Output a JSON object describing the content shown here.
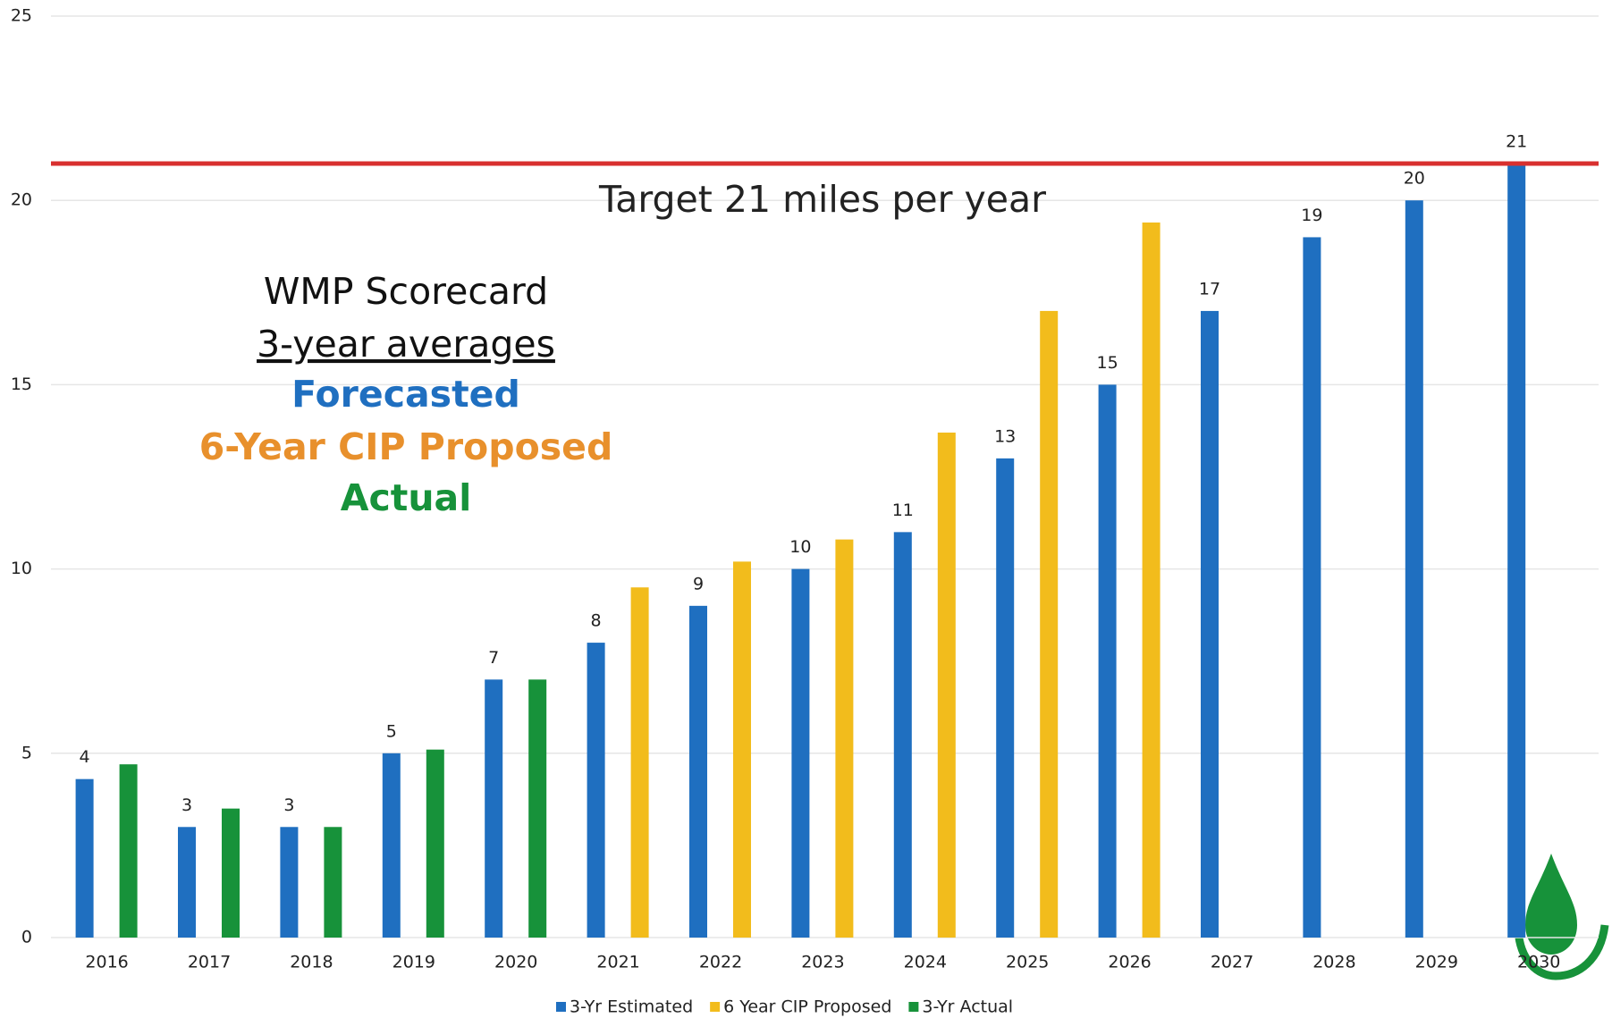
{
  "chart_data": {
    "type": "bar",
    "categories": [
      "2016",
      "2017",
      "2018",
      "2019",
      "2020",
      "2021",
      "2022",
      "2023",
      "2024",
      "2025",
      "2026",
      "2027",
      "2028",
      "2029",
      "2030"
    ],
    "series": [
      {
        "name": "3-Yr Estimated",
        "color": "#1f6fc0",
        "values": [
          4.3,
          3,
          3,
          5,
          7,
          8,
          9,
          10,
          11,
          13,
          15,
          17,
          19,
          20,
          21
        ],
        "value_labels": [
          "4",
          "3",
          "3",
          "5",
          "7",
          "8",
          "9",
          "10",
          "11",
          "13",
          "15",
          "17",
          "19",
          "20",
          "21"
        ]
      },
      {
        "name": "6 Year CIP Proposed",
        "color": "#f2bc1c",
        "values": [
          null,
          null,
          null,
          null,
          null,
          9.5,
          10.2,
          10.8,
          13.7,
          17.0,
          19.4,
          null,
          null,
          null,
          null
        ]
      },
      {
        "name": "3-Yr Actual",
        "color": "#17923a",
        "values": [
          4.7,
          3.5,
          3.0,
          5.1,
          7.0,
          null,
          null,
          null,
          null,
          null,
          null,
          null,
          null,
          null,
          null
        ]
      }
    ],
    "ylim": [
      0,
      25
    ],
    "yticks": [
      0,
      5,
      10,
      15,
      20,
      25
    ],
    "grid": true,
    "target_line": {
      "value": 21,
      "color": "#d8302f",
      "label": "Target 21 miles per year"
    },
    "annotations": [
      {
        "text": "WMP Scorecard",
        "color": "#111111"
      },
      {
        "text": "3-year averages",
        "color": "#111111"
      },
      {
        "text": "Forecasted",
        "color": "#1f6fc0"
      },
      {
        "text": "6-Year CIP Proposed",
        "color": "#e8902c"
      },
      {
        "text": "Actual",
        "color": "#17923a"
      }
    ],
    "legend": "bottom"
  }
}
